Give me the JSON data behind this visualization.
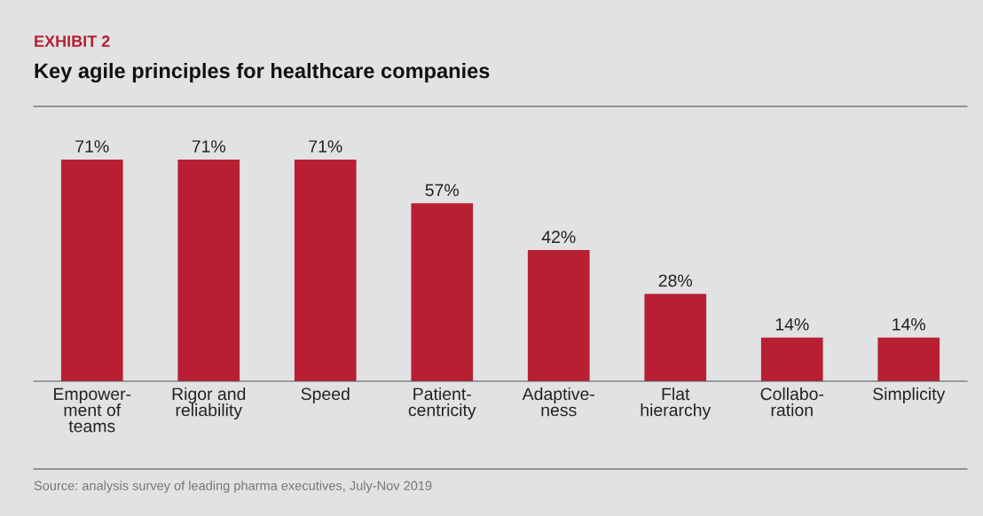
{
  "chart_data": {
    "type": "bar",
    "title": "Key agile principles for healthcare companies",
    "annotations": [
      "EXHIBIT 2",
      "Source: analysis survey of leading pharma executives, July-Nov 2019"
    ],
    "categories": [
      "Empower-\nment of\nteams",
      "Rigor and\nreliability",
      "Speed",
      "Patient-\ncentricity",
      "Adaptive-\nness",
      "Flat\nhierarchy",
      "Collabo-\nration",
      "Simplicity"
    ],
    "values": [
      71,
      71,
      71,
      57,
      42,
      28,
      14,
      14
    ],
    "value_labels": [
      "71%",
      "71%",
      "71%",
      "57%",
      "42%",
      "28%",
      "14%",
      "14%"
    ],
    "color": "#b81f33",
    "grid": false,
    "legend": false
  }
}
